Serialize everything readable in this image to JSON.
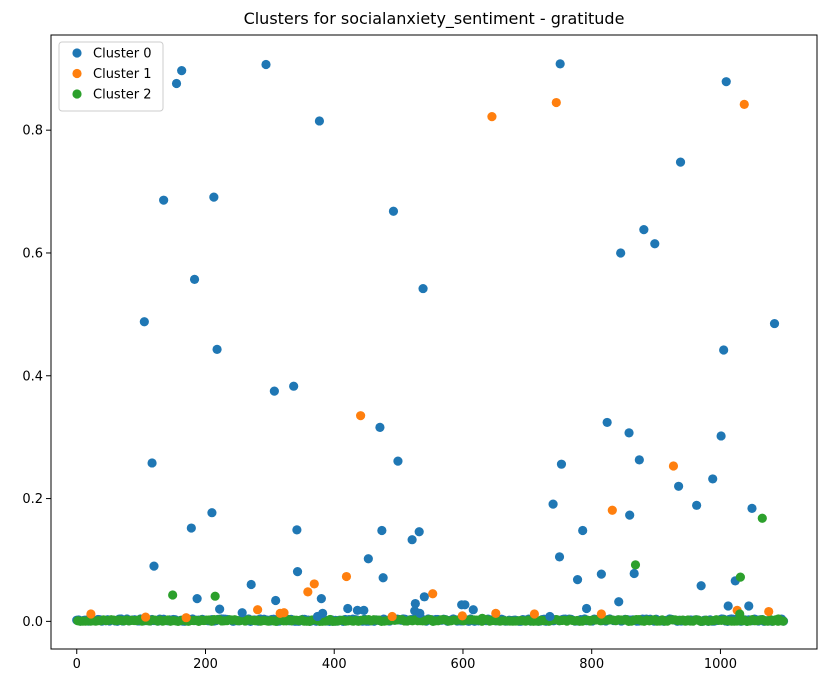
{
  "chart_data": {
    "type": "scatter",
    "title": "Clusters for socialanxiety_sentiment - gratitude",
    "xlabel": "",
    "ylabel": "",
    "xlim": [
      -40,
      1150
    ],
    "ylim": [
      -0.045,
      0.955
    ],
    "xticks": [
      0,
      200,
      400,
      600,
      800,
      1000
    ],
    "yticks": [
      0.0,
      0.2,
      0.4,
      0.6,
      0.8
    ],
    "ytick_labels": [
      "0.0",
      "0.2",
      "0.4",
      "0.6",
      "0.8"
    ],
    "legend_position": "upper-left",
    "grid": false,
    "series": [
      {
        "name": "Cluster 0",
        "color": "#1f77b4",
        "points": [
          [
            105,
            0.488
          ],
          [
            117,
            0.258
          ],
          [
            120,
            0.09
          ],
          [
            135,
            0.686
          ],
          [
            155,
            0.876
          ],
          [
            163,
            0.897
          ],
          [
            178,
            0.152
          ],
          [
            183,
            0.557
          ],
          [
            187,
            0.037
          ],
          [
            210,
            0.177
          ],
          [
            213,
            0.691
          ],
          [
            218,
            0.443
          ],
          [
            222,
            0.02
          ],
          [
            257,
            0.014
          ],
          [
            271,
            0.06
          ],
          [
            294,
            0.907
          ],
          [
            307,
            0.375
          ],
          [
            309,
            0.034
          ],
          [
            337,
            0.383
          ],
          [
            342,
            0.149
          ],
          [
            343,
            0.081
          ],
          [
            374,
            0.008
          ],
          [
            377,
            0.815
          ],
          [
            380,
            0.037
          ],
          [
            382,
            0.013
          ],
          [
            421,
            0.021
          ],
          [
            436,
            0.018
          ],
          [
            446,
            0.018
          ],
          [
            453,
            0.102
          ],
          [
            471,
            0.316
          ],
          [
            474,
            0.148
          ],
          [
            476,
            0.071
          ],
          [
            492,
            0.668
          ],
          [
            499,
            0.261
          ],
          [
            521,
            0.133
          ],
          [
            525,
            0.017
          ],
          [
            526,
            0.029
          ],
          [
            532,
            0.146
          ],
          [
            533,
            0.013
          ],
          [
            538,
            0.542
          ],
          [
            540,
            0.04
          ],
          [
            598,
            0.027
          ],
          [
            603,
            0.027
          ],
          [
            616,
            0.019
          ],
          [
            735,
            0.008
          ],
          [
            740,
            0.191
          ],
          [
            750,
            0.105
          ],
          [
            751,
            0.908
          ],
          [
            753,
            0.256
          ],
          [
            778,
            0.068
          ],
          [
            786,
            0.148
          ],
          [
            792,
            0.021
          ],
          [
            815,
            0.077
          ],
          [
            824,
            0.324
          ],
          [
            842,
            0.032
          ],
          [
            845,
            0.6
          ],
          [
            858,
            0.307
          ],
          [
            859,
            0.173
          ],
          [
            866,
            0.078
          ],
          [
            874,
            0.263
          ],
          [
            881,
            0.638
          ],
          [
            898,
            0.615
          ],
          [
            935,
            0.22
          ],
          [
            938,
            0.748
          ],
          [
            988,
            0.232
          ],
          [
            963,
            0.189
          ],
          [
            970,
            0.058
          ],
          [
            1001,
            0.302
          ],
          [
            1005,
            0.442
          ],
          [
            1009,
            0.879
          ],
          [
            1012,
            0.025
          ],
          [
            1023,
            0.066
          ],
          [
            1044,
            0.025
          ],
          [
            1049,
            0.184
          ],
          [
            1084,
            0.485
          ]
        ]
      },
      {
        "name": "Cluster 1",
        "color": "#ff7f0e",
        "points": [
          [
            22,
            0.012
          ],
          [
            107,
            0.007
          ],
          [
            170,
            0.006
          ],
          [
            281,
            0.019
          ],
          [
            316,
            0.013
          ],
          [
            322,
            0.014
          ],
          [
            359,
            0.048
          ],
          [
            369,
            0.061
          ],
          [
            419,
            0.073
          ],
          [
            441,
            0.335
          ],
          [
            490,
            0.008
          ],
          [
            553,
            0.045
          ],
          [
            599,
            0.009
          ],
          [
            645,
            0.822
          ],
          [
            651,
            0.013
          ],
          [
            711,
            0.012
          ],
          [
            745,
            0.845
          ],
          [
            815,
            0.012
          ],
          [
            832,
            0.181
          ],
          [
            927,
            0.253
          ],
          [
            1026,
            0.018
          ],
          [
            1037,
            0.842
          ],
          [
            1075,
            0.016
          ]
        ]
      },
      {
        "name": "Cluster 2",
        "color": "#2ca02c",
        "points": [
          [
            149,
            0.043
          ],
          [
            215,
            0.041
          ],
          [
            868,
            0.092
          ],
          [
            1031,
            0.072
          ],
          [
            1065,
            0.168
          ],
          [
            1030,
            0.012
          ],
          [
            630,
            0.005
          ],
          [
            1090,
            0.004
          ]
        ]
      }
    ]
  }
}
